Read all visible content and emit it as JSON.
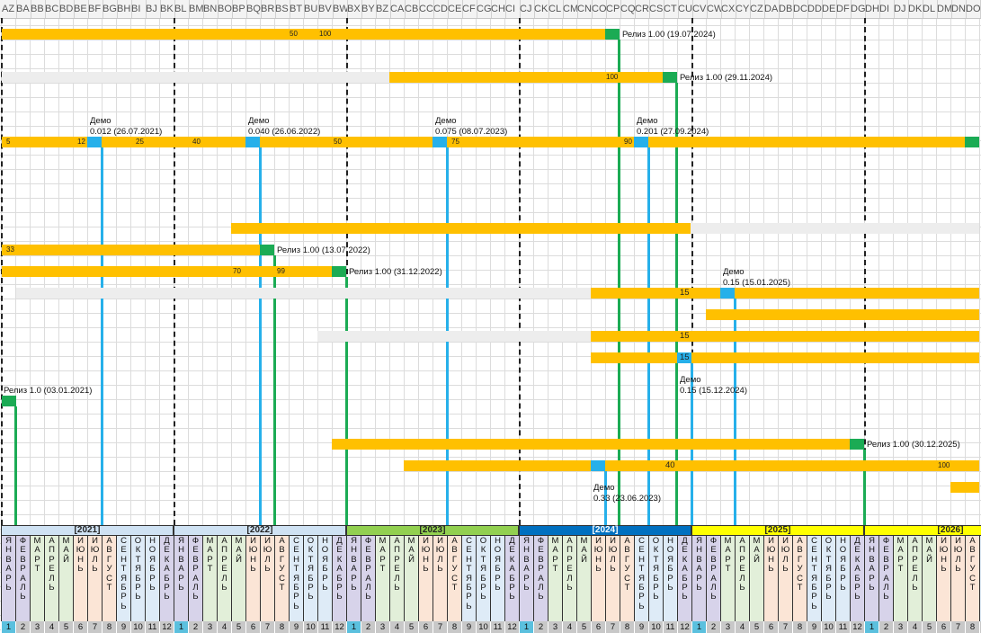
{
  "column_headers": [
    "AZ",
    "BA",
    "BB",
    "BC",
    "BD",
    "BE",
    "BF",
    "BG",
    "BH",
    "BI",
    "BJ",
    "BK",
    "BL",
    "BM",
    "BN",
    "BO",
    "BP",
    "BQ",
    "BR",
    "BS",
    "BT",
    "BU",
    "BV",
    "BW",
    "BX",
    "BY",
    "BZ",
    "CA",
    "CB",
    "CC",
    "CD",
    "CE",
    "CF",
    "CG",
    "CH",
    "CI",
    "CJ",
    "CK",
    "CL",
    "CM",
    "CN",
    "CO",
    "CP",
    "CQ",
    "CR",
    "CS",
    "CT",
    "CU",
    "CV",
    "CW",
    "CX",
    "CY",
    "CZ",
    "DA",
    "DB",
    "DC",
    "DD",
    "DE",
    "DF",
    "DG",
    "DH",
    "DI",
    "DJ",
    "DK",
    "DL",
    "DM",
    "DN",
    "DO"
  ],
  "years": [
    "[2021]",
    "[2022]",
    "[2023]",
    "[2024]",
    "[2025]",
    "[2026]"
  ],
  "month_names": [
    "ЯНВАРЬ",
    "ФЕВРАЛЬ",
    "МАРТ",
    "АПРЕЛЬ",
    "МАЙ",
    "ИЮНЬ",
    "ИЮЛЬ",
    "АВГУСТ",
    "СЕНТЯБРЬ",
    "ОКТЯБРЬ",
    "НОЯБРЬ",
    "ДЕКАБРЬ"
  ],
  "month_numbers": [
    "1",
    "2",
    "3",
    "4",
    "5",
    "6",
    "7",
    "8",
    "9",
    "10",
    "11",
    "12"
  ],
  "colors": {
    "progress": "#ffc000",
    "planned": "#ededed",
    "release": "#1bab54",
    "demo": "#26b0ea",
    "year_2021": "#cfe2f3",
    "year_2022": "#cfe2f3",
    "year_2023": "#92d050",
    "year_2024": "#0070c0",
    "year_2025": "#ffff00",
    "year_2026": "#ffff00"
  },
  "labels": {
    "r1": "Релиз 1.00 (19.07.2024)",
    "r2": "Релиз 1.00 (29.11.2024)",
    "d1_t": "Демо",
    "d1_v": "0.012 (26.07.2021)",
    "d2_t": "Демо",
    "d2_v": "0.040 (26.06.2022)",
    "d3_t": "Демо",
    "d3_v": "0.075 (08.07.2023)",
    "d4_t": "Демо",
    "d4_v": "0.201 (27.09.2024)",
    "r3": "Релиз 1.00 (13.07.2022)",
    "r4": "Релиз 1.00 (31.12.2022)",
    "d5_t": "Демо",
    "d5_v": "0.15 (15.01.2025)",
    "r5": "Релиз 1.0 (03.01.2021)",
    "d6_t": "Демо",
    "d6_v": "0.15 (15.12.2024)",
    "r6": "Релиз 1.00 (30.12.2025)",
    "d7_t": "Демо",
    "d7_v": "0.33 (23.06.2023)"
  },
  "bar_values": {
    "r1_a": "50",
    "r1_b": "100",
    "r2_a": "100",
    "r3_a": "5",
    "r3_b": "12",
    "r3_c": "25",
    "r3_d": "40",
    "r3_e": "50",
    "r3_f": "75",
    "r3_g": "90",
    "r5_a": "33",
    "r6_a": "70",
    "r6_b": "99",
    "r7_a": "15",
    "r9_a": "15",
    "r10_a": "15",
    "r13_a": "40",
    "r13_b": "100"
  }
}
